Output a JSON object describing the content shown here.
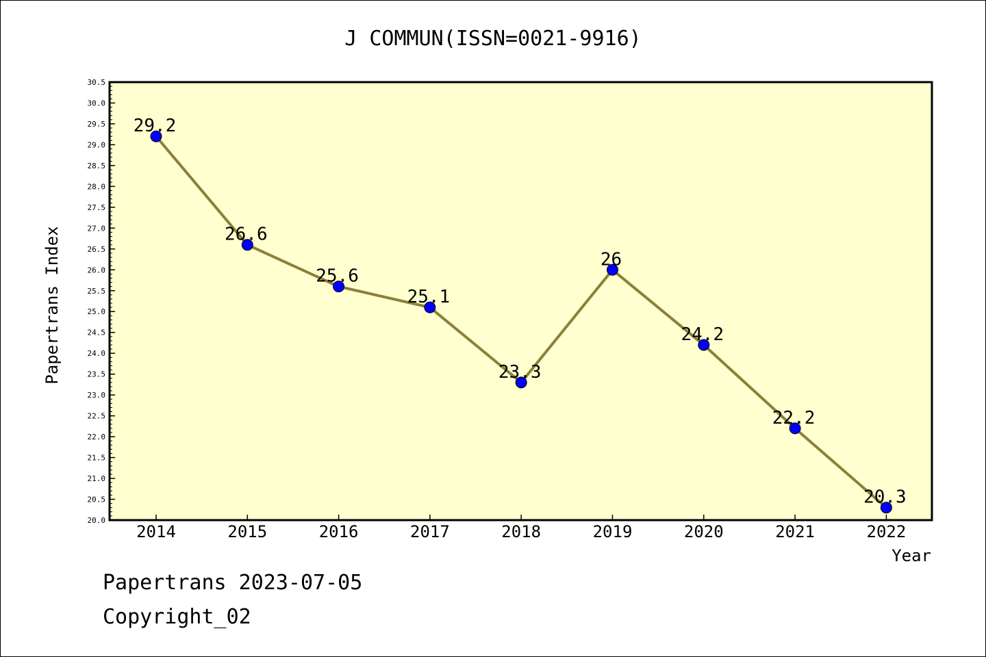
{
  "chart_data": {
    "type": "line",
    "title": "J COMMUN(ISSN=0021-9916)",
    "xlabel": "Year",
    "ylabel": "Papertrans Index",
    "categories": [
      "2014",
      "2015",
      "2016",
      "2017",
      "2018",
      "2019",
      "2020",
      "2021",
      "2022"
    ],
    "series": [
      {
        "values": [
          29.2,
          26.6,
          25.6,
          25.1,
          23.3,
          26,
          24.2,
          22.2,
          20.3
        ],
        "data_labels": [
          "29.2",
          "26.6",
          "25.6",
          "25.1",
          "23.3",
          "26",
          "24.2",
          "22.2",
          "20.3"
        ]
      }
    ],
    "ylim": [
      20.0,
      30.5
    ],
    "y_ticks": [
      "20.0",
      "20.5",
      "21.0",
      "21.5",
      "22.0",
      "22.5",
      "23.0",
      "23.5",
      "24.0",
      "24.5",
      "25.0",
      "25.5",
      "26.0",
      "26.5",
      "27.0",
      "27.5",
      "28.0",
      "28.5",
      "29.0",
      "29.5",
      "30.0",
      "30.5"
    ],
    "grid": false,
    "colors": {
      "plot_background": "#ffffd0",
      "line": "#8b8038",
      "marker": "#0000ff"
    }
  },
  "footer": {
    "line1": "Papertrans 2023-07-05",
    "line2": "Copyright_02"
  }
}
